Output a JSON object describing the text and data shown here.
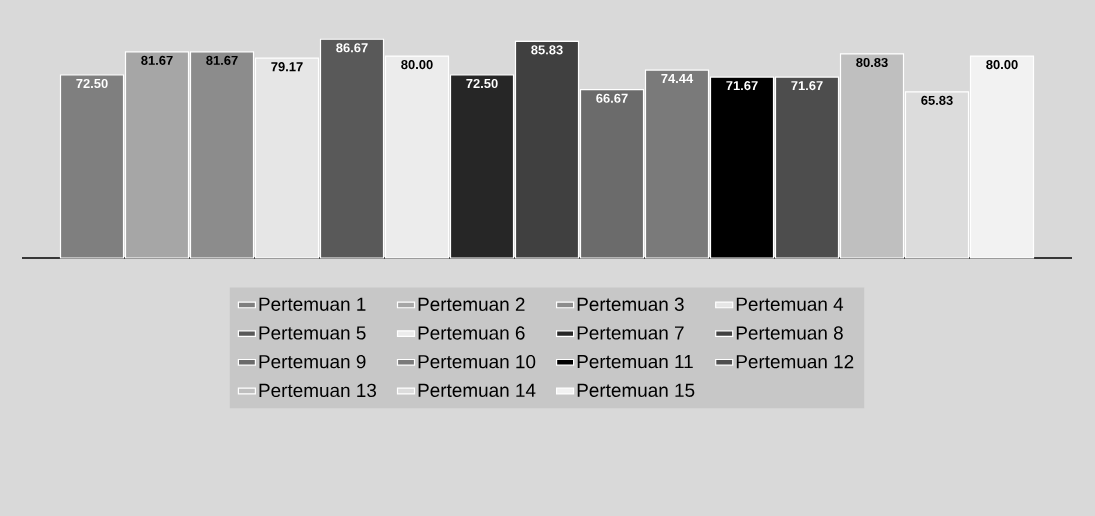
{
  "chart_data": {
    "type": "bar",
    "categories": [
      null
    ],
    "legend": "bottom",
    "series": [
      {
        "name": "Pertemuan 1",
        "color": "#7f7f7f",
        "values": [
          72.5
        ],
        "value_labels": [
          "72.50"
        ]
      },
      {
        "name": "Pertemuan 2",
        "color": "#a6a6a6",
        "values": [
          81.67
        ],
        "value_labels": [
          "81.67"
        ]
      },
      {
        "name": "Pertemuan 3",
        "color": "#8c8c8c",
        "values": [
          81.67
        ],
        "value_labels": [
          "81.67"
        ]
      },
      {
        "name": "Pertemuan 4",
        "color": "#e6e6e6",
        "values": [
          79.17
        ],
        "value_labels": [
          "79.17"
        ]
      },
      {
        "name": "Pertemuan 5",
        "color": "#595959",
        "values": [
          86.67
        ],
        "value_labels": [
          "86.67"
        ]
      },
      {
        "name": "Pertemuan 6",
        "color": "#ececec",
        "values": [
          80.0
        ],
        "value_labels": [
          "80.00"
        ]
      },
      {
        "name": "Pertemuan 7",
        "color": "#262626",
        "values": [
          72.5
        ],
        "value_labels": [
          "72.50"
        ]
      },
      {
        "name": "Pertemuan 8",
        "color": "#404040",
        "values": [
          85.83
        ],
        "value_labels": [
          "85.83"
        ]
      },
      {
        "name": "Pertemuan 9",
        "color": "#6b6b6b",
        "values": [
          66.67
        ],
        "value_labels": [
          "66.67"
        ]
      },
      {
        "name": "Pertemuan 10",
        "color": "#7a7a7a",
        "values": [
          74.44
        ],
        "value_labels": [
          "74.44"
        ]
      },
      {
        "name": "Pertemuan 11",
        "color": "#000000",
        "values": [
          71.67
        ],
        "value_labels": [
          "71.67"
        ]
      },
      {
        "name": "Pertemuan 12",
        "color": "#4d4d4d",
        "values": [
          71.67
        ],
        "value_labels": [
          "71.67"
        ]
      },
      {
        "name": "Pertemuan 13",
        "color": "#bfbfbf",
        "values": [
          80.83
        ],
        "value_labels": [
          "80.83"
        ]
      },
      {
        "name": "Pertemuan 14",
        "color": "#dcdcdc",
        "values": [
          65.83
        ],
        "value_labels": [
          "65.83"
        ]
      },
      {
        "name": "Pertemuan 15",
        "color": "#f2f2f2",
        "values": [
          80.0
        ],
        "value_labels": [
          "80.00"
        ]
      }
    ]
  }
}
